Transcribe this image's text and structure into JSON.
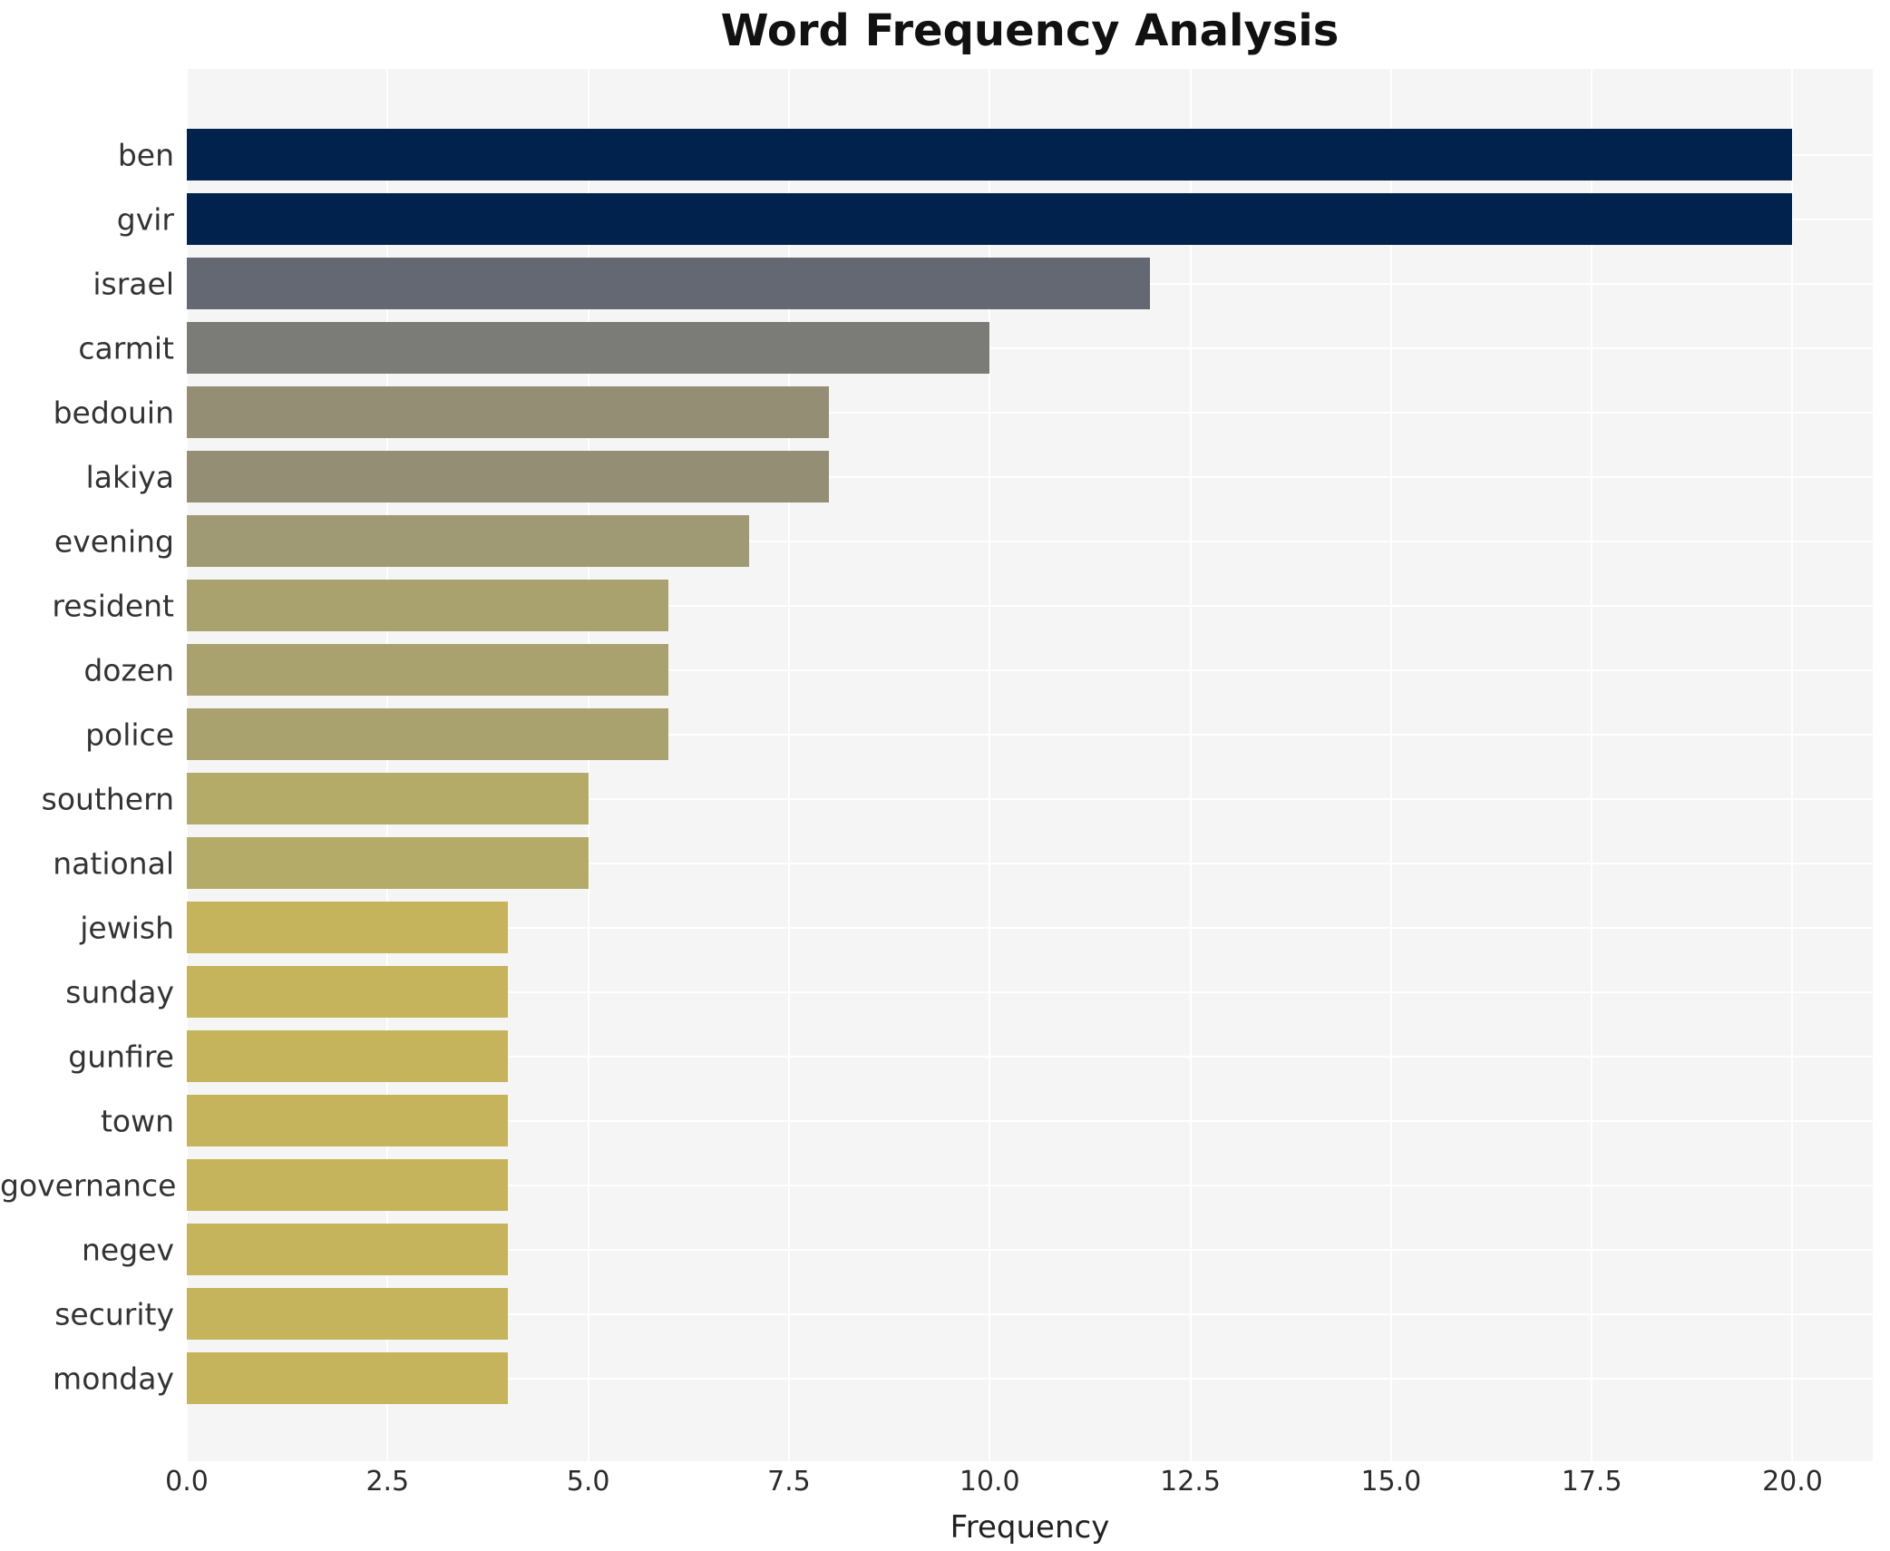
{
  "chart_data": {
    "type": "bar",
    "orientation": "horizontal",
    "title": "Word Frequency Analysis",
    "xlabel": "Frequency",
    "ylabel": "",
    "categories": [
      "ben",
      "gvir",
      "israel",
      "carmit",
      "bedouin",
      "lakiya",
      "evening",
      "resident",
      "dozen",
      "police",
      "southern",
      "national",
      "jewish",
      "sunday",
      "gunfire",
      "town",
      "governance",
      "negev",
      "security",
      "monday"
    ],
    "values": [
      20,
      20,
      12,
      10,
      8,
      8,
      7,
      6,
      6,
      6,
      5,
      5,
      4,
      4,
      4,
      4,
      4,
      4,
      4,
      4
    ],
    "bar_colors": [
      "#01224c",
      "#01224c",
      "#646872",
      "#7b7b77",
      "#948e74",
      "#948e74",
      "#a09a74",
      "#aaa26e",
      "#aaa26e",
      "#aaa26e",
      "#b5ab68",
      "#b5ab68",
      "#c5b45c",
      "#c5b45c",
      "#c5b45c",
      "#c5b45c",
      "#c5b45c",
      "#c5b45c",
      "#c5b45c",
      "#c5b45c"
    ],
    "xlim": [
      0,
      21
    ],
    "xticks": [
      0,
      2.5,
      5,
      7.5,
      10,
      12.5,
      15,
      17.5,
      20
    ],
    "xticklabels": [
      "0.0",
      "2.5",
      "5.0",
      "7.5",
      "10.0",
      "12.5",
      "15.0",
      "17.5",
      "20.0"
    ],
    "grid": true,
    "legend": false,
    "panel_bg": "#f5f5f6",
    "grid_color": "#ffffff",
    "title_color": "#111111",
    "label_color": "#333333"
  }
}
